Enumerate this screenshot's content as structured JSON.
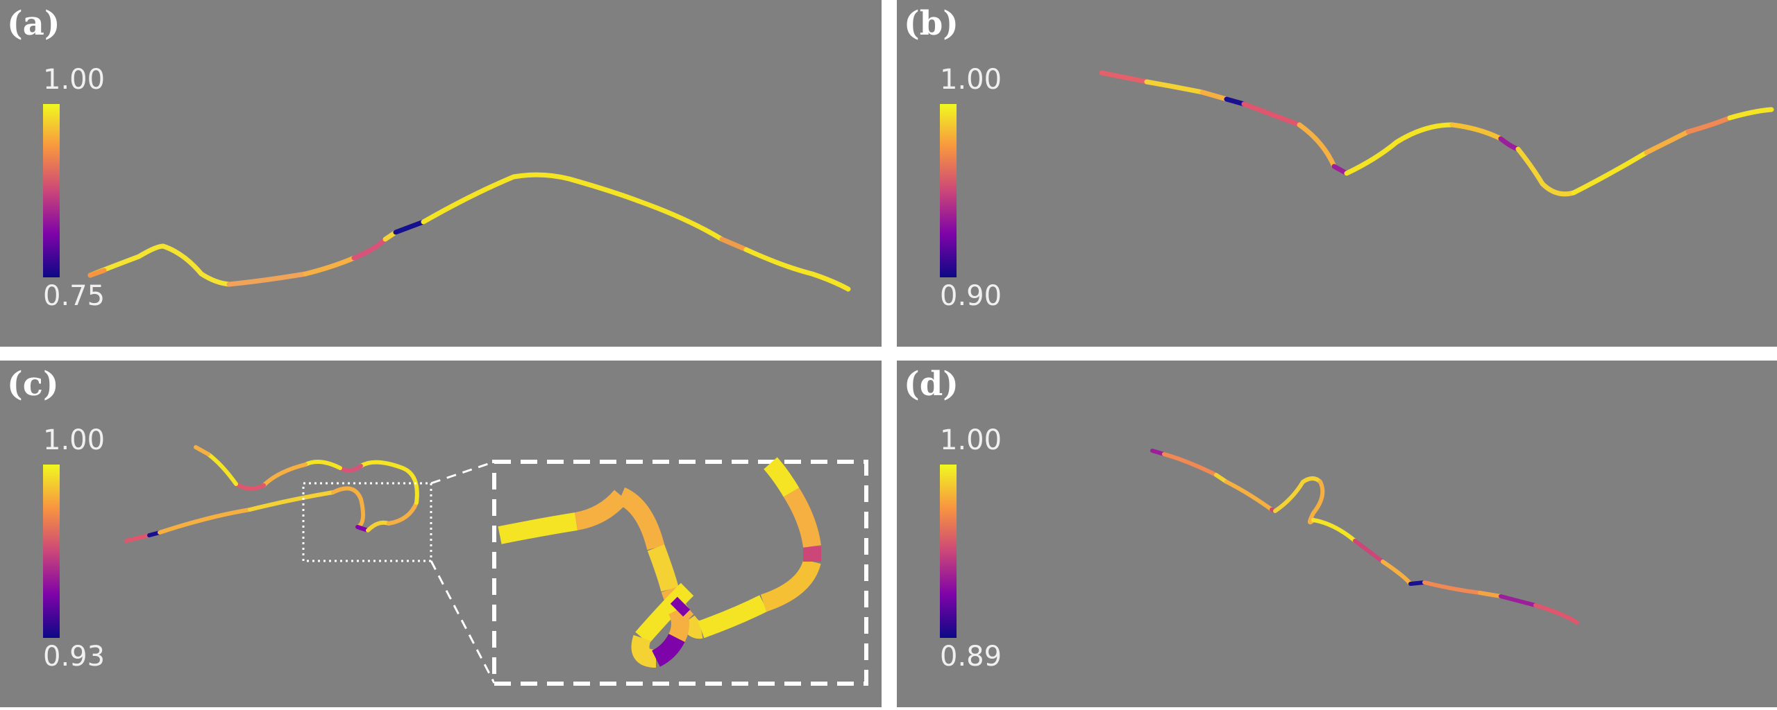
{
  "colormap": [
    "#0d0887",
    "#7e03a8",
    "#cc4778",
    "#f89540",
    "#f0f921"
  ],
  "panels": [
    {
      "id": "a",
      "label": "(a)",
      "colorbar": {
        "max_label": "1.00",
        "min_label": "0.75"
      }
    },
    {
      "id": "b",
      "label": "(b)",
      "colorbar": {
        "max_label": "1.00",
        "min_label": "0.90"
      }
    },
    {
      "id": "c",
      "label": "(c)",
      "colorbar": {
        "max_label": "1.00",
        "min_label": "0.93"
      },
      "has_inset": true
    },
    {
      "id": "d",
      "label": "(d)",
      "colorbar": {
        "max_label": "1.00",
        "min_label": "0.89"
      }
    }
  ]
}
